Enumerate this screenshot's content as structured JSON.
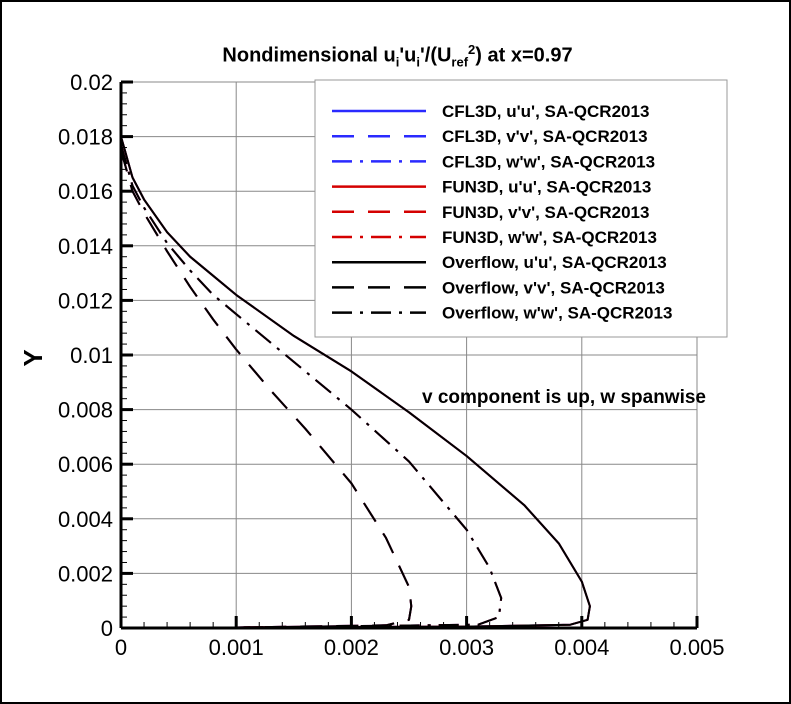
{
  "chart_data": {
    "type": "line",
    "title": {
      "main": "Nondimensional u",
      "sub1": "i",
      "mid1": "'u",
      "sub2": "i",
      "mid2": "'/(U",
      "sub3": "ref",
      "sup": "2",
      "end": ") at x=0.97"
    },
    "xlabel": "",
    "ylabel": "Y",
    "xlim": [
      0,
      0.005
    ],
    "ylim": [
      0,
      0.02
    ],
    "xticks": [
      "0",
      "0.001",
      "0.002",
      "0.003",
      "0.004",
      "0.005"
    ],
    "yticks": [
      "0",
      "0.002",
      "0.004",
      "0.006",
      "0.008",
      "0.01",
      "0.012",
      "0.014",
      "0.016",
      "0.018",
      "0.02"
    ],
    "grid": true,
    "legend_position": "top-right",
    "annotation": "v component is up, w spanwise",
    "colors": {
      "CFL3D": "#2a2aff",
      "FUN3D": "#d40000",
      "Overflow": "#000000"
    },
    "series": [
      {
        "name": "CFL3D, u'u', SA-QCR2013",
        "code": "CFL3D",
        "style": "solid",
        "component": "uu"
      },
      {
        "name": "CFL3D, v'v', SA-QCR2013",
        "code": "CFL3D",
        "style": "dashed",
        "component": "vv"
      },
      {
        "name": "CFL3D, w'w', SA-QCR2013",
        "code": "CFL3D",
        "style": "dashdot",
        "component": "ww"
      },
      {
        "name": "FUN3D, u'u', SA-QCR2013",
        "code": "FUN3D",
        "style": "solid",
        "component": "uu"
      },
      {
        "name": "FUN3D, v'v', SA-QCR2013",
        "code": "FUN3D",
        "style": "dashed",
        "component": "vv"
      },
      {
        "name": "FUN3D, w'w', SA-QCR2013",
        "code": "FUN3D",
        "style": "dashdot",
        "component": "ww"
      },
      {
        "name": "Overflow, u'u', SA-QCR2013",
        "code": "Overflow",
        "style": "solid",
        "component": "uu"
      },
      {
        "name": "Overflow, v'v', SA-QCR2013",
        "code": "Overflow",
        "style": "dashed",
        "component": "vv"
      },
      {
        "name": "Overflow, w'w', SA-QCR2013",
        "code": "Overflow",
        "style": "dashdot",
        "component": "ww"
      }
    ],
    "profiles": {
      "uu": [
        [
          0,
          0.018
        ],
        [
          0.0001,
          0.0165
        ],
        [
          0.0002,
          0.0157
        ],
        [
          0.0004,
          0.0145
        ],
        [
          0.0006,
          0.0136
        ],
        [
          0.0008,
          0.0129
        ],
        [
          0.001,
          0.0122
        ],
        [
          0.0015,
          0.0107
        ],
        [
          0.002,
          0.0094
        ],
        [
          0.0025,
          0.0079
        ],
        [
          0.003,
          0.0063
        ],
        [
          0.0035,
          0.0045
        ],
        [
          0.0038,
          0.0031
        ],
        [
          0.004,
          0.0017
        ],
        [
          0.00407,
          0.0008
        ],
        [
          0.00405,
          0.0003
        ],
        [
          0.0039,
          0.00012
        ],
        [
          0.003,
          5e-05
        ],
        [
          0.001,
          2e-05
        ],
        [
          0,
          0
        ]
      ],
      "vv": [
        [
          0,
          0.0175
        ],
        [
          0.0001,
          0.016
        ],
        [
          0.0002,
          0.0152
        ],
        [
          0.0004,
          0.0138
        ],
        [
          0.0006,
          0.0125
        ],
        [
          0.0008,
          0.0113
        ],
        [
          0.001,
          0.0102
        ],
        [
          0.0013,
          0.0087
        ],
        [
          0.0016,
          0.0073
        ],
        [
          0.002,
          0.0053
        ],
        [
          0.0023,
          0.0033
        ],
        [
          0.0025,
          0.0015
        ],
        [
          0.00252,
          0.0008
        ],
        [
          0.0025,
          0.0003
        ],
        [
          0.0023,
          0.0001
        ],
        [
          0.001,
          2e-05
        ],
        [
          0,
          0
        ]
      ],
      "ww": [
        [
          0,
          0.0177
        ],
        [
          0.0001,
          0.0162
        ],
        [
          0.0002,
          0.0154
        ],
        [
          0.0004,
          0.0141
        ],
        [
          0.0006,
          0.0131
        ],
        [
          0.0008,
          0.0122
        ],
        [
          0.001,
          0.0115
        ],
        [
          0.0014,
          0.0101
        ],
        [
          0.002,
          0.008
        ],
        [
          0.0025,
          0.0061
        ],
        [
          0.003,
          0.0036
        ],
        [
          0.0032,
          0.0022
        ],
        [
          0.0033,
          0.0011
        ],
        [
          0.00328,
          0.0004
        ],
        [
          0.0031,
          0.00012
        ],
        [
          0.001,
          2e-05
        ],
        [
          0,
          0
        ]
      ]
    }
  }
}
